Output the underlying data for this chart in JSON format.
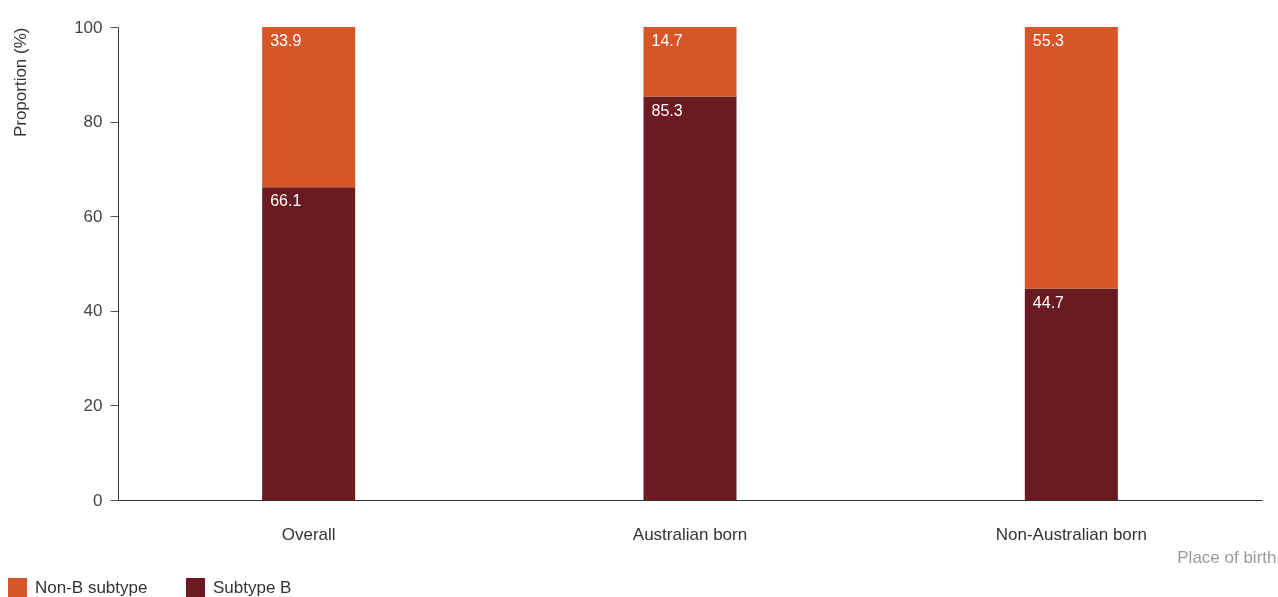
{
  "chart_data": {
    "type": "bar",
    "stacked": true,
    "ylabel": "Proportion (%)",
    "xlabel": "Place of birth",
    "categories": [
      "Overall",
      "Australian born",
      "Non-Australian born"
    ],
    "series": [
      {
        "name": "Subtype B",
        "color": "#6a1a20",
        "values": [
          66.1,
          85.3,
          44.7
        ]
      },
      {
        "name": "Non-B subtype",
        "color": "#d85527",
        "values": [
          33.9,
          14.7,
          55.3
        ]
      }
    ],
    "ylim": [
      0,
      100
    ],
    "yticks": [
      0,
      20,
      40,
      60,
      80,
      100
    ],
    "data_labels": true,
    "legend": "bottom left"
  }
}
